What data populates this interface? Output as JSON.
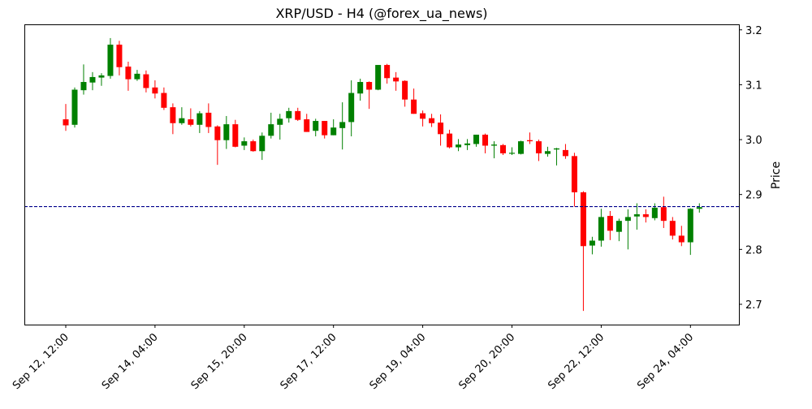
{
  "chart_data": {
    "type": "candlestick",
    "title": "XRP/USD - H4 (@forex_ua_news)",
    "xlabel": "",
    "ylabel": "Price",
    "ylim": [
      2.663,
      3.21
    ],
    "yticks": [
      2.7,
      2.8,
      2.9,
      3.0,
      3.1,
      3.2
    ],
    "grid": false,
    "xtick_labels": [
      "Sep 12, 12:00",
      "Sep 14, 04:00",
      "Sep 15, 20:00",
      "Sep 17, 12:00",
      "Sep 19, 04:00",
      "Sep 20, 20:00",
      "Sep 22, 12:00",
      "Sep 24, 04:00"
    ],
    "colors": {
      "up": "#008000",
      "down": "#ff0000",
      "hline": "#00008b"
    },
    "hline": {
      "value": 2.878,
      "style": "dashed"
    },
    "columns": [
      "time",
      "open",
      "high",
      "low",
      "close"
    ],
    "candles": [
      [
        "Sep 12 12:00",
        3.037,
        3.065,
        3.016,
        3.026
      ],
      [
        "Sep 12 16:00",
        3.027,
        3.095,
        3.022,
        3.091
      ],
      [
        "Sep 12 20:00",
        3.09,
        3.137,
        3.082,
        3.105
      ],
      [
        "Sep 13 00:00",
        3.104,
        3.123,
        3.09,
        3.114
      ],
      [
        "Sep 13 04:00",
        3.113,
        3.121,
        3.098,
        3.117
      ],
      [
        "Sep 13 08:00",
        3.116,
        3.185,
        3.111,
        3.173
      ],
      [
        "Sep 13 12:00",
        3.173,
        3.18,
        3.117,
        3.132
      ],
      [
        "Sep 13 16:00",
        3.133,
        3.142,
        3.089,
        3.11
      ],
      [
        "Sep 13 20:00",
        3.11,
        3.127,
        3.107,
        3.12
      ],
      [
        "Sep 14 00:00",
        3.119,
        3.126,
        3.086,
        3.094
      ],
      [
        "Sep 14 04:00",
        3.095,
        3.108,
        3.075,
        3.084
      ],
      [
        "Sep 14 08:00",
        3.085,
        3.095,
        3.054,
        3.058
      ],
      [
        "Sep 14 12:00",
        3.059,
        3.066,
        3.01,
        3.03
      ],
      [
        "Sep 14 16:00",
        3.03,
        3.059,
        3.027,
        3.039
      ],
      [
        "Sep 14 20:00",
        3.037,
        3.057,
        3.024,
        3.027
      ],
      [
        "Sep 15 00:00",
        3.027,
        3.052,
        3.012,
        3.048
      ],
      [
        "Sep 15 04:00",
        3.049,
        3.066,
        3.012,
        3.023
      ],
      [
        "Sep 15 08:00",
        3.024,
        3.026,
        2.954,
        2.999
      ],
      [
        "Sep 15 12:00",
        2.999,
        3.043,
        2.983,
        3.028
      ],
      [
        "Sep 15 16:00",
        3.028,
        3.036,
        2.986,
        2.987
      ],
      [
        "Sep 15 20:00",
        2.989,
        3.004,
        2.981,
        2.997
      ],
      [
        "Sep 16 00:00",
        2.997,
        3.0,
        2.978,
        2.979
      ],
      [
        "Sep 16 04:00",
        2.979,
        3.013,
        2.963,
        3.007
      ],
      [
        "Sep 16 08:00",
        3.007,
        3.049,
        3.002,
        3.028
      ],
      [
        "Sep 16 12:00",
        3.027,
        3.047,
        3.0,
        3.038
      ],
      [
        "Sep 16 16:00",
        3.039,
        3.058,
        3.031,
        3.052
      ],
      [
        "Sep 16 20:00",
        3.052,
        3.058,
        3.034,
        3.036
      ],
      [
        "Sep 17 00:00",
        3.037,
        3.047,
        3.014,
        3.014
      ],
      [
        "Sep 17 04:00",
        3.016,
        3.038,
        3.006,
        3.034
      ],
      [
        "Sep 17 08:00",
        3.034,
        3.034,
        3.002,
        3.008
      ],
      [
        "Sep 17 12:00",
        3.008,
        3.037,
        3.008,
        3.022
      ],
      [
        "Sep 17 16:00",
        3.021,
        3.068,
        2.982,
        3.032
      ],
      [
        "Sep 17 20:00",
        3.032,
        3.108,
        3.006,
        3.085
      ],
      [
        "Sep 18 00:00",
        3.084,
        3.111,
        3.071,
        3.105
      ],
      [
        "Sep 18 04:00",
        3.105,
        3.106,
        3.056,
        3.091
      ],
      [
        "Sep 18 08:00",
        3.091,
        3.136,
        3.09,
        3.136
      ],
      [
        "Sep 18 12:00",
        3.136,
        3.138,
        3.102,
        3.112
      ],
      [
        "Sep 18 16:00",
        3.113,
        3.123,
        3.089,
        3.106
      ],
      [
        "Sep 18 20:00",
        3.107,
        3.108,
        3.06,
        3.073
      ],
      [
        "Sep 19 00:00",
        3.073,
        3.093,
        3.047,
        3.047
      ],
      [
        "Sep 19 04:00",
        3.048,
        3.053,
        3.024,
        3.038
      ],
      [
        "Sep 19 08:00",
        3.039,
        3.047,
        3.023,
        3.03
      ],
      [
        "Sep 19 12:00",
        3.031,
        3.046,
        2.989,
        3.01
      ],
      [
        "Sep 19 16:00",
        3.011,
        3.018,
        2.984,
        2.986
      ],
      [
        "Sep 19 20:00",
        2.986,
        3.001,
        2.979,
        2.991
      ],
      [
        "Sep 20 00:00",
        2.99,
        3.001,
        2.981,
        2.993
      ],
      [
        "Sep 20 04:00",
        2.992,
        3.009,
        2.987,
        3.009
      ],
      [
        "Sep 20 08:00",
        3.009,
        3.011,
        2.975,
        2.989
      ],
      [
        "Sep 20 12:00",
        2.989,
        2.997,
        2.966,
        2.991
      ],
      [
        "Sep 20 16:00",
        2.99,
        2.992,
        2.972,
        2.975
      ],
      [
        "Sep 20 20:00",
        2.975,
        2.986,
        2.972,
        2.976
      ],
      [
        "Sep 21 00:00",
        2.974,
        2.998,
        2.973,
        2.997
      ],
      [
        "Sep 21 04:00",
        2.999,
        3.013,
        2.992,
        2.997
      ],
      [
        "Sep 21 08:00",
        2.997,
        3.0,
        2.961,
        2.975
      ],
      [
        "Sep 21 12:00",
        2.974,
        2.987,
        2.969,
        2.979
      ],
      [
        "Sep 21 16:00",
        2.982,
        2.985,
        2.953,
        2.984
      ],
      [
        "Sep 21 20:00",
        2.981,
        2.992,
        2.965,
        2.97
      ],
      [
        "Sep 22 00:00",
        2.97,
        2.976,
        2.878,
        2.904
      ],
      [
        "Sep 22 04:00",
        2.904,
        2.906,
        2.688,
        2.806
      ],
      [
        "Sep 22 08:00",
        2.807,
        2.823,
        2.791,
        2.816
      ],
      [
        "Sep 22 12:00",
        2.816,
        2.874,
        2.805,
        2.859
      ],
      [
        "Sep 22 16:00",
        2.861,
        2.87,
        2.817,
        2.834
      ],
      [
        "Sep 22 20:00",
        2.832,
        2.856,
        2.815,
        2.852
      ],
      [
        "Sep 23 00:00",
        2.852,
        2.873,
        2.8,
        2.859
      ],
      [
        "Sep 23 04:00",
        2.86,
        2.884,
        2.836,
        2.864
      ],
      [
        "Sep 23 08:00",
        2.864,
        2.873,
        2.849,
        2.859
      ],
      [
        "Sep 23 12:00",
        2.857,
        2.884,
        2.853,
        2.876
      ],
      [
        "Sep 23 16:00",
        2.877,
        2.896,
        2.839,
        2.852
      ],
      [
        "Sep 23 20:00",
        2.852,
        2.859,
        2.818,
        2.825
      ],
      [
        "Sep 24 00:00",
        2.825,
        2.843,
        2.806,
        2.813
      ],
      [
        "Sep 24 04:00",
        2.813,
        2.875,
        2.79,
        2.874
      ],
      [
        "Sep 24 08:00",
        2.874,
        2.884,
        2.867,
        2.877
      ]
    ]
  }
}
